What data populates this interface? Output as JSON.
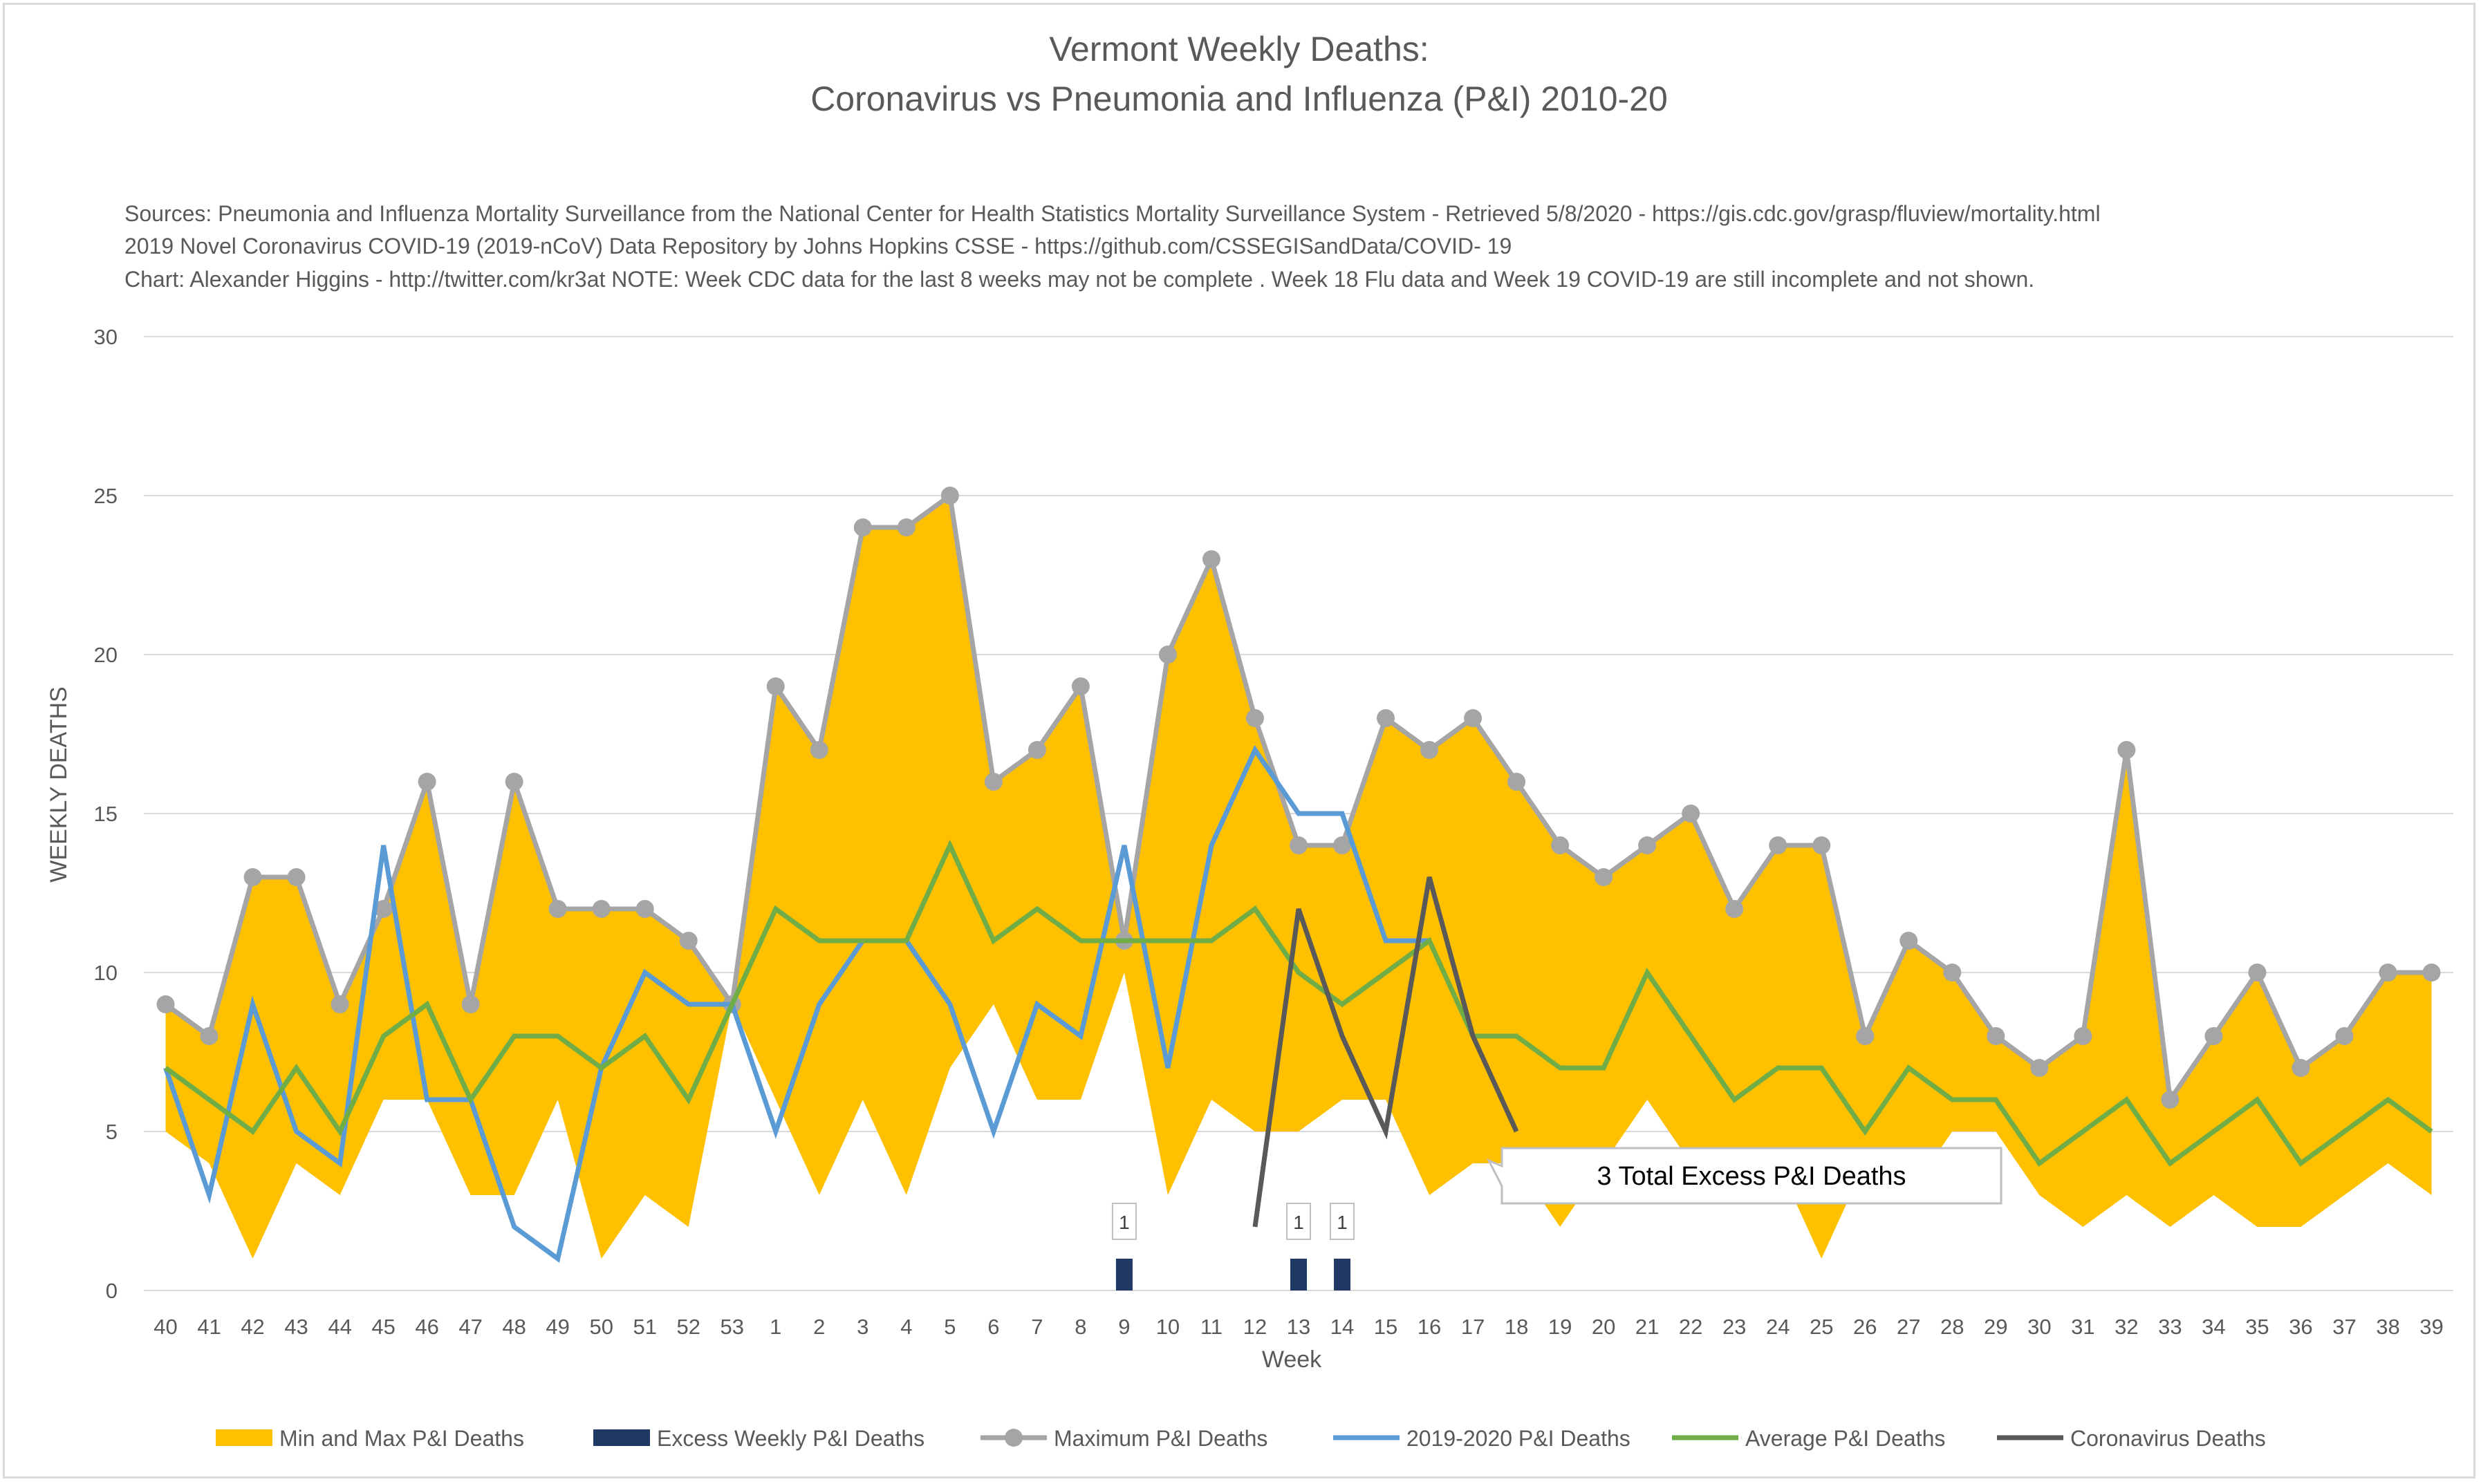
{
  "chart_data": {
    "type": "line",
    "title_lines": [
      "Vermont Weekly Deaths:",
      "Coronavirus vs Pneumonia and Influenza (P&I) 2010-20"
    ],
    "sources": [
      "Sources: Pneumonia and Influenza Mortality Surveillance from the National Center for Health Statistics Mortality Surveillance System - Retrieved 5/8/2020 - https://gis.cdc.gov/grasp/fluview/mortality.html",
      "2019 Novel Coronavirus COVID-19 (2019-nCoV) Data Repository by Johns Hopkins CSSE - https://github.com/CSSEGISandData/COVID- 19",
      "Chart: Alexander Higgins - http://twitter.com/kr3at   NOTE: Week CDC data for the last 8 weeks may not be complete . Week 18 Flu data and Week 19 COVID-19 are still incomplete and not shown."
    ],
    "xlabel": "Week",
    "ylabel": "WEEKLY DEATHS",
    "ylim": [
      0,
      30
    ],
    "yticks": [
      0,
      5,
      10,
      15,
      20,
      25,
      30
    ],
    "grid": true,
    "legend_position": "bottom",
    "categories": [
      "40",
      "41",
      "42",
      "43",
      "44",
      "45",
      "46",
      "47",
      "48",
      "49",
      "50",
      "51",
      "52",
      "53",
      "1",
      "2",
      "3",
      "4",
      "5",
      "6",
      "7",
      "8",
      "9",
      "10",
      "11",
      "12",
      "13",
      "14",
      "15",
      "16",
      "17",
      "18",
      "19",
      "20",
      "21",
      "22",
      "23",
      "24",
      "25",
      "26",
      "27",
      "28",
      "29",
      "30",
      "31",
      "32",
      "33",
      "34",
      "35",
      "36",
      "37",
      "38",
      "39"
    ],
    "min_deaths": [
      5,
      4,
      1,
      4,
      3,
      6,
      6,
      3,
      3,
      6,
      1,
      3,
      2,
      9,
      6,
      3,
      6,
      3,
      7,
      9,
      6,
      6,
      10,
      3,
      6,
      5,
      5,
      6,
      6,
      3,
      4,
      4,
      2,
      4,
      6,
      4,
      4,
      4,
      1,
      4,
      3,
      5,
      5,
      3,
      2,
      3,
      2,
      3,
      2,
      2,
      3,
      4,
      3
    ],
    "series": [
      {
        "name": "Min and Max P&I Deaths",
        "kind": "area",
        "color": "#FFC000",
        "values": [
          9,
          8,
          13,
          13,
          9,
          12,
          16,
          9,
          16,
          12,
          12,
          12,
          11,
          9,
          19,
          17,
          24,
          24,
          25,
          16,
          17,
          19,
          11,
          20,
          23,
          18,
          14,
          14,
          18,
          17,
          18,
          16,
          14,
          13,
          14,
          15,
          12,
          14,
          14,
          8,
          11,
          10,
          8,
          7,
          8,
          17,
          6,
          8,
          10,
          7,
          8,
          10,
          10
        ]
      },
      {
        "name": "Excess Weekly P&I Deaths",
        "kind": "bar",
        "color": "#203864",
        "values": [
          0,
          0,
          0,
          0,
          0,
          0,
          0,
          0,
          0,
          0,
          0,
          0,
          0,
          0,
          0,
          0,
          0,
          0,
          0,
          0,
          0,
          0,
          1,
          0,
          0,
          0,
          1,
          1,
          0,
          0,
          0,
          0,
          0,
          0,
          0,
          0,
          0,
          0,
          0,
          0,
          0,
          0,
          0,
          0,
          0,
          0,
          0,
          0,
          0,
          0,
          0,
          0,
          0
        ]
      },
      {
        "name": "Maximum P&I Deaths",
        "kind": "line-markers",
        "color": "#A5A5A5",
        "values": [
          9,
          8,
          13,
          13,
          9,
          12,
          16,
          9,
          16,
          12,
          12,
          12,
          11,
          9,
          19,
          17,
          24,
          24,
          25,
          16,
          17,
          19,
          11,
          20,
          23,
          18,
          14,
          14,
          18,
          17,
          18,
          16,
          14,
          13,
          14,
          15,
          12,
          14,
          14,
          8,
          11,
          10,
          8,
          7,
          8,
          17,
          6,
          8,
          10,
          7,
          8,
          10,
          10
        ]
      },
      {
        "name": "2019-2020 P&I Deaths",
        "kind": "line",
        "color": "#5B9BD5",
        "values": [
          7,
          3,
          9,
          5,
          4,
          14,
          6,
          6,
          2,
          1,
          7,
          10,
          9,
          9,
          5,
          9,
          11,
          11,
          9,
          5,
          9,
          8,
          14,
          7,
          14,
          17,
          15,
          15,
          11,
          11,
          null,
          null,
          null,
          null,
          null,
          null,
          null,
          null,
          null,
          null,
          null,
          null,
          null,
          null,
          null,
          null,
          null,
          null,
          null,
          null,
          null,
          null,
          null
        ]
      },
      {
        "name": "Average P&I Deaths",
        "kind": "line",
        "color": "#70AD47",
        "values": [
          7,
          6,
          5,
          7,
          5,
          8,
          9,
          6,
          8,
          8,
          7,
          8,
          6,
          9,
          12,
          11,
          11,
          11,
          14,
          11,
          12,
          11,
          11,
          11,
          11,
          12,
          10,
          9,
          10,
          11,
          8,
          8,
          7,
          7,
          10,
          8,
          6,
          7,
          7,
          5,
          7,
          6,
          6,
          4,
          5,
          6,
          4,
          5,
          6,
          4,
          5,
          6,
          5
        ]
      },
      {
        "name": "Coronavirus Deaths",
        "kind": "line",
        "color": "#595959",
        "values": [
          null,
          null,
          null,
          null,
          null,
          null,
          null,
          null,
          null,
          null,
          null,
          null,
          null,
          null,
          null,
          null,
          null,
          null,
          null,
          null,
          null,
          null,
          null,
          null,
          null,
          2,
          12,
          8,
          5,
          13,
          8,
          5,
          null,
          null,
          null,
          null,
          null,
          null,
          null,
          null,
          null,
          null,
          null,
          null,
          null,
          null,
          null,
          null,
          null,
          null,
          null,
          null,
          null
        ]
      }
    ],
    "bar_labels": [
      "1",
      "1",
      "1"
    ],
    "annotation": "3 Total Excess P&I Deaths"
  }
}
